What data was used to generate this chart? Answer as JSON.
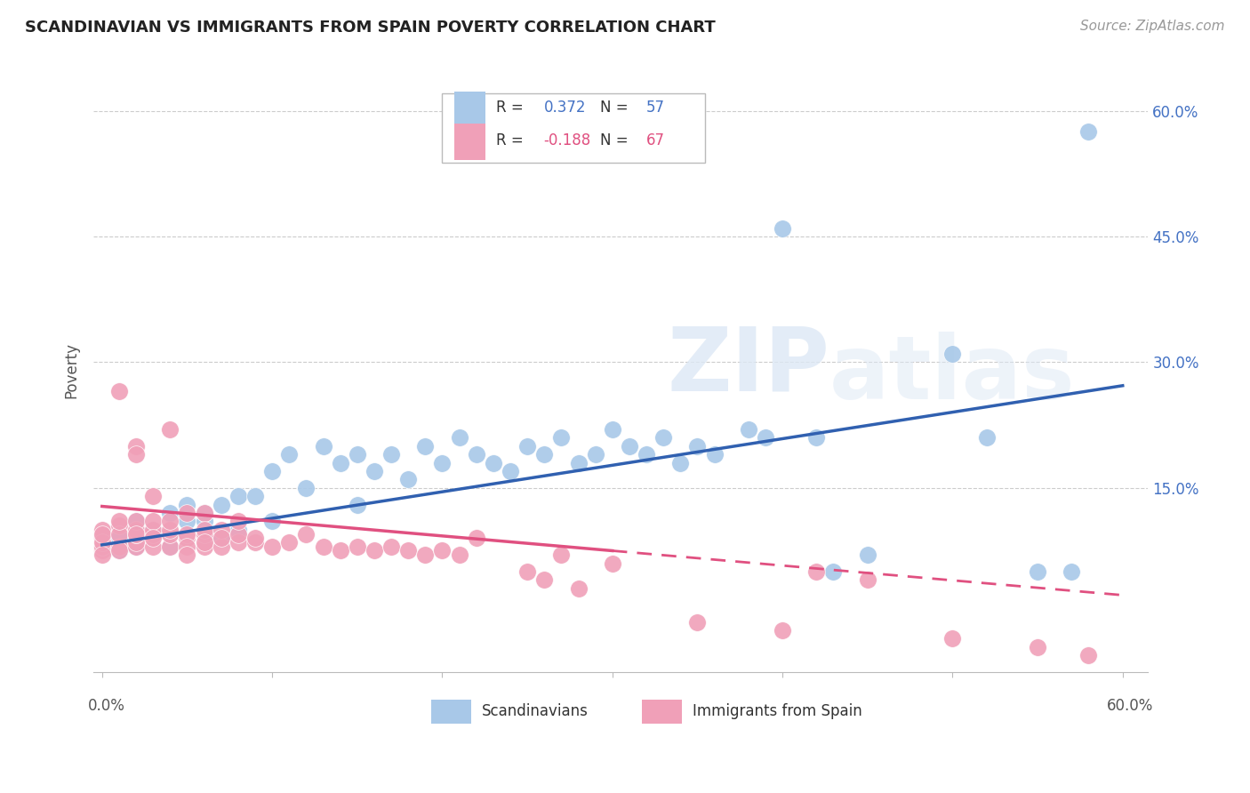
{
  "title": "SCANDINAVIAN VS IMMIGRANTS FROM SPAIN POVERTY CORRELATION CHART",
  "source": "Source: ZipAtlas.com",
  "ylabel": "Poverty",
  "blue_color": "#A8C8E8",
  "pink_color": "#F0A0B8",
  "blue_line_color": "#3060B0",
  "pink_line_color": "#E05080",
  "legend_label_blue": "Scandinavians",
  "legend_label_pink": "Immigrants from Spain",
  "blue_scatter": [
    [
      0.01,
      0.09
    ],
    [
      0.01,
      0.075
    ],
    [
      0.02,
      0.11
    ],
    [
      0.02,
      0.08
    ],
    [
      0.03,
      0.1
    ],
    [
      0.03,
      0.095
    ],
    [
      0.04,
      0.12
    ],
    [
      0.04,
      0.08
    ],
    [
      0.05,
      0.11
    ],
    [
      0.05,
      0.13
    ],
    [
      0.06,
      0.11
    ],
    [
      0.06,
      0.12
    ],
    [
      0.07,
      0.13
    ],
    [
      0.07,
      0.09
    ],
    [
      0.08,
      0.14
    ],
    [
      0.08,
      0.1
    ],
    [
      0.09,
      0.14
    ],
    [
      0.1,
      0.17
    ],
    [
      0.1,
      0.11
    ],
    [
      0.11,
      0.19
    ],
    [
      0.12,
      0.15
    ],
    [
      0.13,
      0.2
    ],
    [
      0.14,
      0.18
    ],
    [
      0.15,
      0.13
    ],
    [
      0.15,
      0.19
    ],
    [
      0.16,
      0.17
    ],
    [
      0.17,
      0.19
    ],
    [
      0.18,
      0.16
    ],
    [
      0.19,
      0.2
    ],
    [
      0.2,
      0.18
    ],
    [
      0.21,
      0.21
    ],
    [
      0.22,
      0.19
    ],
    [
      0.23,
      0.18
    ],
    [
      0.24,
      0.17
    ],
    [
      0.25,
      0.2
    ],
    [
      0.26,
      0.19
    ],
    [
      0.27,
      0.21
    ],
    [
      0.28,
      0.18
    ],
    [
      0.29,
      0.19
    ],
    [
      0.3,
      0.22
    ],
    [
      0.31,
      0.2
    ],
    [
      0.32,
      0.19
    ],
    [
      0.33,
      0.21
    ],
    [
      0.34,
      0.18
    ],
    [
      0.35,
      0.2
    ],
    [
      0.36,
      0.19
    ],
    [
      0.38,
      0.22
    ],
    [
      0.39,
      0.21
    ],
    [
      0.4,
      0.46
    ],
    [
      0.42,
      0.21
    ],
    [
      0.43,
      0.05
    ],
    [
      0.45,
      0.07
    ],
    [
      0.5,
      0.31
    ],
    [
      0.52,
      0.21
    ],
    [
      0.55,
      0.05
    ],
    [
      0.57,
      0.05
    ],
    [
      0.58,
      0.575
    ]
  ],
  "pink_scatter": [
    [
      0.0,
      0.09
    ],
    [
      0.0,
      0.075
    ],
    [
      0.0,
      0.1
    ],
    [
      0.0,
      0.08
    ],
    [
      0.0,
      0.085
    ],
    [
      0.0,
      0.095
    ],
    [
      0.0,
      0.07
    ],
    [
      0.01,
      0.08
    ],
    [
      0.01,
      0.105
    ],
    [
      0.01,
      0.075
    ],
    [
      0.01,
      0.095
    ],
    [
      0.01,
      0.265
    ],
    [
      0.01,
      0.11
    ],
    [
      0.02,
      0.08
    ],
    [
      0.02,
      0.085
    ],
    [
      0.02,
      0.095
    ],
    [
      0.02,
      0.1
    ],
    [
      0.02,
      0.11
    ],
    [
      0.02,
      0.095
    ],
    [
      0.02,
      0.2
    ],
    [
      0.02,
      0.19
    ],
    [
      0.03,
      0.08
    ],
    [
      0.03,
      0.095
    ],
    [
      0.03,
      0.1
    ],
    [
      0.03,
      0.11
    ],
    [
      0.03,
      0.09
    ],
    [
      0.03,
      0.14
    ],
    [
      0.04,
      0.08
    ],
    [
      0.04,
      0.095
    ],
    [
      0.04,
      0.1
    ],
    [
      0.04,
      0.11
    ],
    [
      0.04,
      0.22
    ],
    [
      0.05,
      0.09
    ],
    [
      0.05,
      0.095
    ],
    [
      0.05,
      0.08
    ],
    [
      0.05,
      0.07
    ],
    [
      0.05,
      0.12
    ],
    [
      0.06,
      0.08
    ],
    [
      0.06,
      0.095
    ],
    [
      0.06,
      0.12
    ],
    [
      0.06,
      0.1
    ],
    [
      0.06,
      0.085
    ],
    [
      0.07,
      0.08
    ],
    [
      0.07,
      0.1
    ],
    [
      0.07,
      0.09
    ],
    [
      0.08,
      0.085
    ],
    [
      0.08,
      0.095
    ],
    [
      0.08,
      0.11
    ],
    [
      0.09,
      0.085
    ],
    [
      0.09,
      0.09
    ],
    [
      0.1,
      0.08
    ],
    [
      0.11,
      0.085
    ],
    [
      0.12,
      0.095
    ],
    [
      0.13,
      0.08
    ],
    [
      0.14,
      0.075
    ],
    [
      0.15,
      0.08
    ],
    [
      0.16,
      0.075
    ],
    [
      0.17,
      0.08
    ],
    [
      0.18,
      0.075
    ],
    [
      0.19,
      0.07
    ],
    [
      0.2,
      0.075
    ],
    [
      0.21,
      0.07
    ],
    [
      0.22,
      0.09
    ],
    [
      0.25,
      0.05
    ],
    [
      0.26,
      0.04
    ],
    [
      0.27,
      0.07
    ],
    [
      0.28,
      0.03
    ],
    [
      0.3,
      0.06
    ],
    [
      0.35,
      -0.01
    ],
    [
      0.4,
      -0.02
    ],
    [
      0.42,
      0.05
    ],
    [
      0.45,
      0.04
    ],
    [
      0.5,
      -0.03
    ],
    [
      0.55,
      -0.04
    ],
    [
      0.58,
      -0.05
    ]
  ],
  "blue_line": {
    "x0": 0.0,
    "y0": 0.082,
    "x1": 0.6,
    "y1": 0.272
  },
  "pink_solid_line": {
    "x0": 0.0,
    "y0": 0.128,
    "x1": 0.3,
    "y1": 0.075
  },
  "pink_dash_line": {
    "x0": 0.3,
    "y0": 0.075,
    "x1": 0.6,
    "y1": 0.022
  },
  "xlim": [
    -0.005,
    0.615
  ],
  "ylim": [
    -0.07,
    0.65
  ],
  "yticks": [
    0.15,
    0.3,
    0.45,
    0.6
  ],
  "ytick_labels": [
    "15.0%",
    "30.0%",
    "45.0%",
    "60.0%"
  ],
  "xticks": [
    0.0,
    0.1,
    0.2,
    0.3,
    0.4,
    0.5,
    0.6
  ],
  "xtick_labels": [
    "0.0%",
    "",
    "",
    "",
    "",
    "",
    "60.0%"
  ],
  "grid_color": "#CCCCCC",
  "spine_color": "#BBBBBB"
}
